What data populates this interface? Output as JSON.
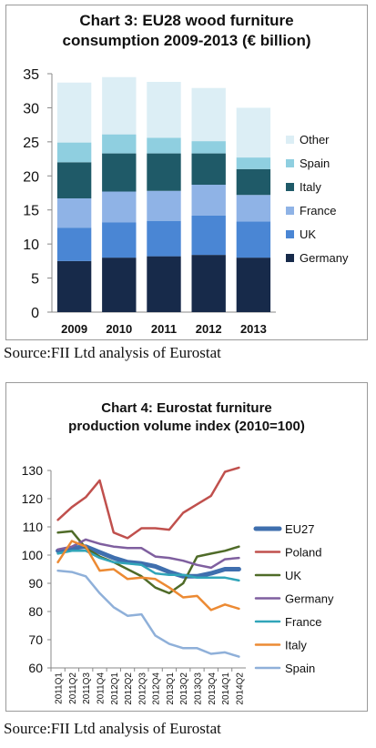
{
  "chart_data": [
    {
      "type": "bar",
      "stacked": true,
      "title_line1": "Chart 3: EU28 wood furniture",
      "title_line2": "consumption 2009-2013 (€ billion)",
      "categories": [
        "2009",
        "2010",
        "2011",
        "2012",
        "2013"
      ],
      "ylim": [
        0,
        35
      ],
      "yticks": [
        0,
        5,
        10,
        15,
        20,
        25,
        30,
        35
      ],
      "grid": false,
      "legend_position": "right",
      "series": [
        {
          "name": "Germany",
          "color": "#172a4a",
          "values": [
            7.5,
            8.0,
            8.2,
            8.4,
            8.0
          ]
        },
        {
          "name": "UK",
          "color": "#4a86d4",
          "values": [
            4.9,
            5.2,
            5.2,
            5.8,
            5.3
          ]
        },
        {
          "name": "France",
          "color": "#8fb3e6",
          "values": [
            4.3,
            4.5,
            4.4,
            4.5,
            3.9
          ]
        },
        {
          "name": "Italy",
          "color": "#1f5a68",
          "values": [
            5.3,
            5.6,
            5.5,
            4.6,
            3.8
          ]
        },
        {
          "name": "Spain",
          "color": "#8fcfe0",
          "values": [
            2.9,
            2.8,
            2.3,
            1.8,
            1.7
          ]
        },
        {
          "name": "Other",
          "color": "#dceef5",
          "values": [
            8.8,
            8.4,
            8.2,
            7.8,
            7.3
          ]
        }
      ]
    },
    {
      "type": "line",
      "title_line1": "Chart 4: Eurostat furniture",
      "title_line2": "production volume index (2010=100)",
      "categories": [
        "2011Q1",
        "2011Q2",
        "2011Q3",
        "2011Q4",
        "2012Q1",
        "2012Q2",
        "2012Q3",
        "2012Q4",
        "2013Q1",
        "2013Q2",
        "2013Q3",
        "2013Q4",
        "2014Q1",
        "2014Q2"
      ],
      "ylim": [
        60,
        130
      ],
      "yticks": [
        60,
        70,
        80,
        90,
        100,
        110,
        120,
        130
      ],
      "grid": false,
      "legend_position": "right",
      "series": [
        {
          "name": "EU27",
          "color": "#3f6fae",
          "width": 5,
          "values": [
            101.5,
            102.5,
            103,
            101,
            99,
            97.5,
            97,
            96,
            94,
            92.5,
            92.5,
            93.5,
            95,
            95
          ]
        },
        {
          "name": "Poland",
          "color": "#c0504d",
          "width": 2.5,
          "values": [
            112.5,
            117,
            120.5,
            126.5,
            108,
            106,
            109.5,
            109.5,
            109,
            115,
            118,
            121,
            129.5,
            131
          ]
        },
        {
          "name": "UK",
          "color": "#4f6b28",
          "width": 2.5,
          "values": [
            108,
            108.5,
            102.5,
            99.5,
            97.5,
            95,
            92.5,
            88.5,
            86.5,
            90,
            99.5,
            100.5,
            101.5,
            103
          ]
        },
        {
          "name": "Germany",
          "color": "#7f5f9f",
          "width": 2.5,
          "values": [
            102,
            103,
            105.5,
            104,
            103,
            102.5,
            102.5,
            99.5,
            99,
            98,
            96.5,
            95.5,
            98.5,
            99
          ]
        },
        {
          "name": "France",
          "color": "#31a5b9",
          "width": 2.5,
          "values": [
            100.5,
            101.5,
            101.5,
            99,
            97.5,
            97,
            96.5,
            93.5,
            93,
            93,
            92,
            92,
            92,
            91
          ]
        },
        {
          "name": "Italy",
          "color": "#ec8a33",
          "width": 2.5,
          "values": [
            97.5,
            105,
            103,
            94.5,
            95,
            91.5,
            92,
            91.5,
            88.5,
            85,
            85.5,
            80.5,
            82.5,
            81
          ]
        },
        {
          "name": "Spain",
          "color": "#8fb0d9",
          "width": 2.5,
          "values": [
            94.5,
            94,
            92.5,
            86.5,
            81.5,
            78.5,
            79,
            71.5,
            68.5,
            67,
            67,
            65,
            65.5,
            64
          ]
        }
      ]
    }
  ],
  "source_note_1": "Source:FII Ltd analysis of Eurostat",
  "source_note_2": "Source:FII Ltd analysis of Eurostat"
}
